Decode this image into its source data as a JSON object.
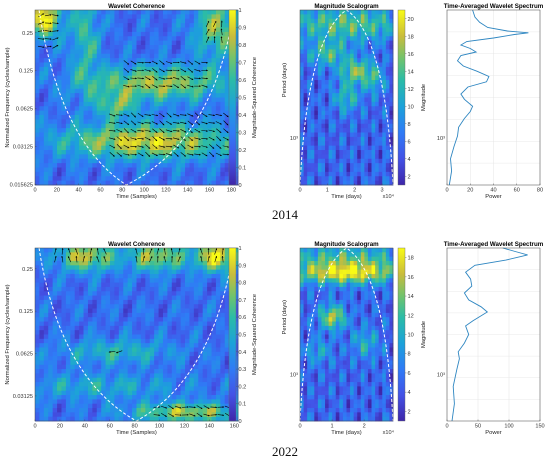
{
  "chart_data": [
    {
      "type": "heatmap",
      "panel": "coherence",
      "row": 0,
      "title": "Wavelet Coherence",
      "xlabel": "Time (Samples)",
      "ylabel": "Normalized Frequency  (cycles/sample)",
      "xticks": [
        "0",
        "20",
        "40",
        "60",
        "80",
        "100",
        "120",
        "140",
        "160",
        "180"
      ],
      "xlim": [
        0,
        186
      ],
      "yticks": [
        "0.25",
        "0.125",
        "0.0625",
        "0.03125",
        "0.015625"
      ],
      "colorbar": {
        "label": "Magnitude-Squared Coherence",
        "ticks": [
          "0",
          "0.1",
          "0.2",
          "0.3",
          "0.4",
          "0.5",
          "0.6",
          "0.7",
          "0.8",
          "0.9",
          "1"
        ],
        "range": [
          0,
          1
        ]
      }
    },
    {
      "type": "heatmap",
      "panel": "scalogram",
      "row": 0,
      "title": "Magnitude Scalogram",
      "xlabel": "Time (days)",
      "xexp": "x10⁴",
      "ylabel": "Period (days)",
      "xticks": [
        "0",
        "1",
        "2",
        "3"
      ],
      "xlim": [
        0,
        3.4
      ],
      "yticks": [
        "10³"
      ],
      "colorbar": {
        "label": "Magnitude",
        "ticks": [
          "2",
          "4",
          "6",
          "8",
          "10",
          "12",
          "14",
          "16",
          "18",
          "20"
        ],
        "range": [
          1,
          21
        ]
      }
    },
    {
      "type": "line",
      "panel": "spectrum",
      "row": 0,
      "title": "Time-Averaged Wavelet Spectrum",
      "xlabel": "Power",
      "xticks": [
        "0",
        "20",
        "40",
        "60",
        "80"
      ],
      "xlim": [
        0,
        80
      ],
      "yticks": [
        "10³"
      ],
      "series": [
        {
          "values": [
            [
              2,
              0
            ],
            [
              4,
              0.08
            ],
            [
              3,
              0.15
            ],
            [
              6,
              0.22
            ],
            [
              9,
              0.28
            ],
            [
              10,
              0.33
            ],
            [
              15,
              0.38
            ],
            [
              20,
              0.42
            ],
            [
              22,
              0.45
            ],
            [
              15,
              0.49
            ],
            [
              12,
              0.52
            ],
            [
              18,
              0.56
            ],
            [
              34,
              0.59
            ],
            [
              36,
              0.62
            ],
            [
              26,
              0.65
            ],
            [
              14,
              0.68
            ],
            [
              9,
              0.71
            ],
            [
              12,
              0.74
            ],
            [
              25,
              0.76
            ],
            [
              20,
              0.78
            ],
            [
              12,
              0.8
            ],
            [
              17,
              0.82
            ],
            [
              40,
              0.84
            ],
            [
              58,
              0.86
            ],
            [
              70,
              0.87
            ],
            [
              52,
              0.88
            ],
            [
              35,
              0.9
            ],
            [
              28,
              0.93
            ],
            [
              24,
              0.96
            ],
            [
              22,
              1
            ]
          ]
        }
      ]
    },
    {
      "type": "heatmap",
      "panel": "coherence",
      "row": 1,
      "title": "Wavelet Coherence",
      "xlabel": "Time (Samples)",
      "ylabel": "Normalized Frequency  (cycles/sample)",
      "xticks": [
        "0",
        "20",
        "40",
        "60",
        "80",
        "100",
        "120",
        "140",
        "160"
      ],
      "xlim": [
        0,
        163
      ],
      "yticks": [
        "0.25",
        "0.125",
        "0.0625",
        "0.03125"
      ],
      "colorbar": {
        "label": "Magnitude-Squared Coherence",
        "ticks": [
          "0",
          "0.1",
          "0.2",
          "0.3",
          "0.4",
          "0.5",
          "0.6",
          "0.7",
          "0.8",
          "0.9",
          "1"
        ],
        "range": [
          0,
          1
        ]
      }
    },
    {
      "type": "heatmap",
      "panel": "scalogram",
      "row": 1,
      "title": "Magnitude Scalogram",
      "xlabel": "Time (days)",
      "xexp": "x10⁴",
      "ylabel": "Period (days)",
      "xticks": [
        "0",
        "1",
        "2"
      ],
      "xlim": [
        0,
        2.9
      ],
      "yticks": [
        "10³"
      ],
      "colorbar": {
        "label": "Magnitude",
        "ticks": [
          "2",
          "4",
          "6",
          "8",
          "10",
          "12",
          "14",
          "16",
          "18"
        ],
        "range": [
          1,
          19
        ]
      }
    },
    {
      "type": "line",
      "panel": "spectrum",
      "row": 1,
      "title": "Time-Averaged Wavelet Spectrum",
      "xlabel": "Power",
      "xticks": [
        "0",
        "50",
        "100",
        "150"
      ],
      "xlim": [
        0,
        150
      ],
      "yticks": [
        "10³"
      ],
      "series": [
        {
          "values": [
            [
              8,
              0
            ],
            [
              12,
              0.1
            ],
            [
              10,
              0.2
            ],
            [
              16,
              0.3
            ],
            [
              20,
              0.36
            ],
            [
              18,
              0.4
            ],
            [
              28,
              0.45
            ],
            [
              35,
              0.5
            ],
            [
              30,
              0.55
            ],
            [
              42,
              0.58
            ],
            [
              65,
              0.63
            ],
            [
              55,
              0.66
            ],
            [
              35,
              0.7
            ],
            [
              28,
              0.74
            ],
            [
              40,
              0.78
            ],
            [
              38,
              0.82
            ],
            [
              30,
              0.86
            ],
            [
              45,
              0.9
            ],
            [
              95,
              0.93
            ],
            [
              130,
              0.96
            ],
            [
              110,
              0.98
            ],
            [
              90,
              1
            ]
          ]
        }
      ]
    }
  ],
  "years": [
    "2014",
    "2022"
  ]
}
